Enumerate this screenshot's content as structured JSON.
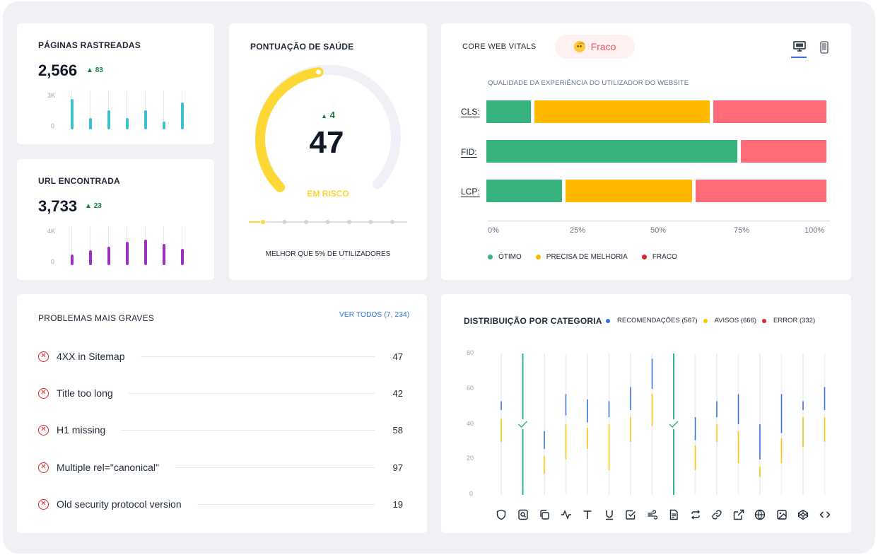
{
  "crawled": {
    "title": "PÁGINAS RASTREADAS",
    "value": "2,566",
    "delta": "83",
    "axis": [
      "3K",
      "0"
    ],
    "bars": [
      0.8,
      0.3,
      0.5,
      0.3,
      0.5,
      0.2,
      0.7
    ],
    "color": "#3ec1cf"
  },
  "urls": {
    "title": "URL ENCONTRADA",
    "value": "3,733",
    "delta": "23",
    "axis": [
      "4K",
      "0"
    ],
    "bars": [
      0.28,
      0.38,
      0.48,
      0.62,
      0.66,
      0.55,
      0.42
    ],
    "color": "#9b2fbf"
  },
  "health": {
    "title": "PONTUAÇÃO DE SAÚDE",
    "delta": "4",
    "score": "47",
    "score_fraction": 0.47,
    "status": "EM RISCO",
    "footer": "MELHOR QUE 5% DE UTILIZADORES",
    "color": "#fdd835"
  },
  "cwv": {
    "title": "CORE WEB VITALS",
    "badge": "Fraco",
    "badge_icon": "🙁",
    "subtitle": "QUALIDADE DA EXPERIÊNCIA DO UTILIZADOR DO WEBSITE",
    "rows": [
      {
        "label": "CLS:",
        "good": 14,
        "needs": 52,
        "poor": 34
      },
      {
        "label": "FID:",
        "good": 74,
        "needs": 0,
        "poor": 26
      },
      {
        "label": "LCP:",
        "good": 23,
        "needs": 38,
        "poor": 39
      }
    ],
    "ticks": [
      "0%",
      "25%",
      "50%",
      "75%",
      "100%"
    ],
    "legend": [
      {
        "label": "ÓTIMO",
        "color": "#37b37e"
      },
      {
        "label": "PRECISA DE MELHORIA",
        "color": "#ffb800"
      },
      {
        "label": "FRACO",
        "color": "#d72b2b"
      }
    ],
    "colors": {
      "good": "#37b37e",
      "needs": "#ffb800",
      "poor": "#ff6b76"
    }
  },
  "issues": {
    "title": "PROBLEMAS MAIS GRAVES",
    "link": "VER TODOS (7, 234)",
    "items": [
      {
        "label": "4XX in Sitemap",
        "value": "47"
      },
      {
        "label": "Title too long",
        "value": "42"
      },
      {
        "label": "H1 missing",
        "value": "58"
      },
      {
        "label": "Multiple rel=\"canonical\"",
        "value": "97"
      },
      {
        "label": "Old security protocol version",
        "value": "19"
      }
    ]
  },
  "categories": {
    "title": "DISTRIBUIÇÃO POR CATEGORIA",
    "legend": [
      {
        "label": "RECOMENDAÇÕES (567)",
        "color": "#2f6fe0"
      },
      {
        "label": "AVISOS (666)",
        "color": "#ffc400"
      },
      {
        "label": "ERROR (332)",
        "color": "#d72b2b"
      }
    ],
    "yticks": [
      "80",
      "60",
      "40",
      "20",
      "0"
    ],
    "icons": [
      "shield-icon",
      "search-page-icon",
      "copy-icon",
      "pulse-icon",
      "text-icon",
      "underline-icon",
      "checkbox-icon",
      "wind-icon",
      "file-icon",
      "repeat-icon",
      "link-icon",
      "external-link-icon",
      "globe-icon",
      "image-icon",
      "codepen-icon",
      "code-icon"
    ],
    "columns": [
      {
        "blue": [
          53,
          48
        ],
        "yellow": [
          43,
          30
        ]
      },
      {
        "green": true
      },
      {
        "blue": [
          36,
          26
        ],
        "yellow": [
          22,
          12
        ]
      },
      {
        "blue": [
          57,
          45
        ],
        "yellow": [
          40,
          20
        ]
      },
      {
        "blue": [
          54,
          41
        ],
        "yellow": [
          38,
          26
        ]
      },
      {
        "blue": [
          53,
          44
        ],
        "yellow": [
          40,
          14
        ]
      },
      {
        "blue": [
          61,
          48
        ],
        "yellow": [
          44,
          30
        ]
      },
      {
        "blue": [
          77,
          60
        ],
        "yellow": [
          57,
          39
        ]
      },
      {
        "green": true
      },
      {
        "blue": [
          44,
          31
        ],
        "yellow": [
          28,
          14
        ]
      },
      {
        "blue": [
          53,
          44
        ],
        "yellow": [
          40,
          30
        ]
      },
      {
        "blue": [
          57,
          40
        ],
        "yellow": [
          36,
          18
        ]
      },
      {
        "blue": [
          40,
          20
        ],
        "yellow": [
          16,
          10
        ]
      },
      {
        "blue": [
          57,
          35
        ],
        "yellow": [
          32,
          18
        ]
      },
      {
        "blue": [
          53,
          48
        ],
        "yellow": [
          44,
          27
        ]
      },
      {
        "blue": [
          61,
          48
        ],
        "yellow": [
          44,
          30
        ]
      }
    ]
  }
}
